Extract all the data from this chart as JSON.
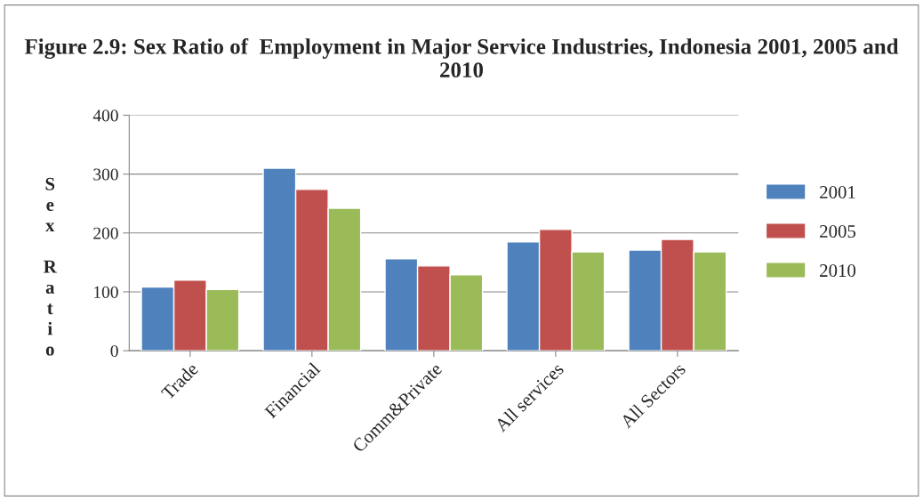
{
  "chart_data": {
    "type": "bar",
    "title": "Figure 2.9: Sex Ratio of  Employment in Major Service Industries, Indonesia 2001, 2005 and 2010",
    "ylabel": "Sex Ratio",
    "categories": [
      "Trade",
      "Financial",
      "Comm&Private",
      "All services",
      "All Sectors"
    ],
    "series": [
      {
        "name": "2001",
        "color": "#4f81bd",
        "values": [
          108,
          310,
          156,
          185,
          171
        ]
      },
      {
        "name": "2005",
        "color": "#c0504d",
        "values": [
          120,
          274,
          144,
          206,
          189
        ]
      },
      {
        "name": "2010",
        "color": "#9bbb59",
        "values": [
          104,
          242,
          129,
          168,
          168
        ]
      }
    ],
    "ylim": [
      0,
      400
    ],
    "yticks": [
      0,
      100,
      200,
      300,
      400
    ],
    "grid": "y",
    "legend": "right"
  }
}
